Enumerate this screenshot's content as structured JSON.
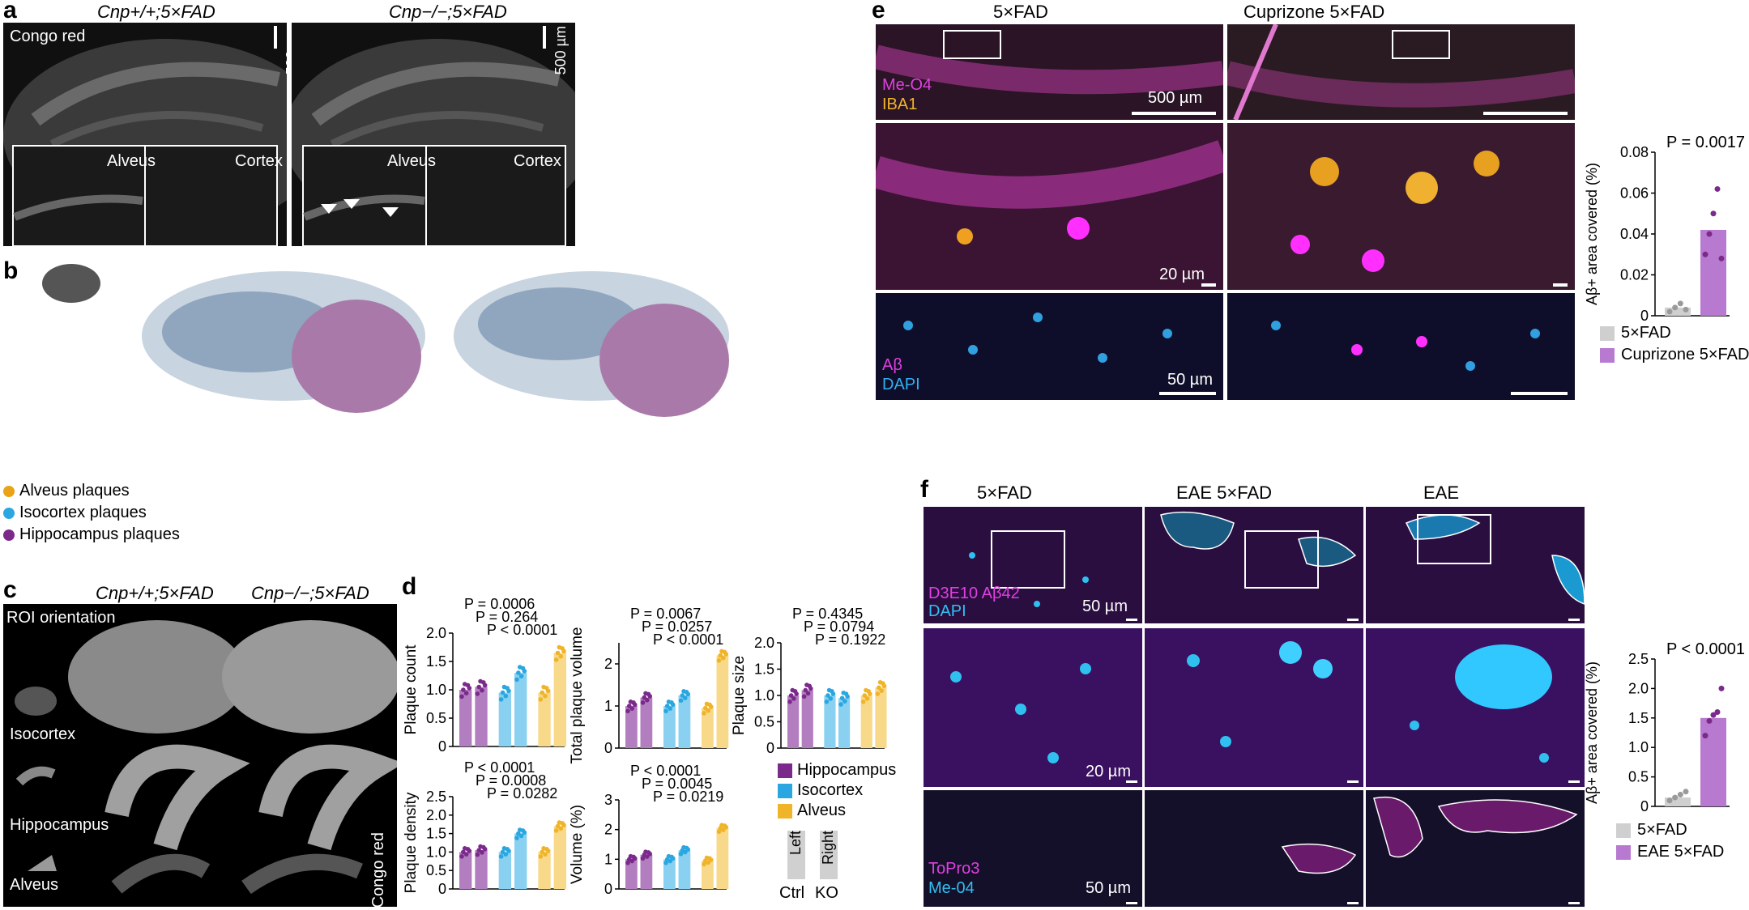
{
  "panels": {
    "a": {
      "label": "a",
      "col1": "Cnp+/+;5×FAD",
      "col2": "Cnp−/−;5×FAD",
      "stain": "Congo red",
      "scale": "500 µm",
      "inset_left": "Alveus",
      "inset_right": "Cortex"
    },
    "b": {
      "label": "b",
      "legend": [
        {
          "name": "Alveus plaques",
          "color": "#e8a317"
        },
        {
          "name": "Isocortex plaques",
          "color": "#2aa7e0"
        },
        {
          "name": "Hippocampus plaques",
          "color": "#7b2a8c"
        }
      ]
    },
    "c": {
      "label": "c",
      "col1": "Cnp+/+;5×FAD",
      "col2": "Cnp−/−;5×FAD",
      "roi": "ROI orientation",
      "rows": [
        "Isocortex",
        "Hippocampus",
        "Alveus"
      ],
      "stain": "Congo red"
    },
    "d": {
      "label": "d",
      "legend": [
        {
          "name": "Hippocampus",
          "color": "#7b2a8c"
        },
        {
          "name": "Isocortex",
          "color": "#2aa7e0"
        },
        {
          "name": "Alveus",
          "color": "#f0b429"
        }
      ],
      "side_left": "Left",
      "side_right": "Right",
      "ctrl": "Ctrl",
      "ko": "KO"
    },
    "e": {
      "label": "e",
      "col1": "5×FAD",
      "col2": "Cuprizone 5×FAD",
      "stain1a": "Me-O4",
      "stain1b": "IBA1",
      "scale1": "500 µm",
      "scale2": "20 µm",
      "stain3a": "Aβ",
      "stain3b": "DAPI",
      "scale3": "50 µm"
    },
    "f": {
      "label": "f",
      "col1": "5×FAD",
      "col2": "EAE 5×FAD",
      "col3": "EAE",
      "stain1a": "D3E10 Aβ42",
      "stain1b": "DAPI",
      "scale1": "50 µm",
      "scale2": "20 µm",
      "stain3a": "ToPro3",
      "stain3b": "Me-04",
      "scale3": "50 µm"
    }
  },
  "chart_data": [
    {
      "type": "bar",
      "id": "plaque-count",
      "ylabel": "Plaque count",
      "ylim": [
        0,
        2.0
      ],
      "yticks": [
        "0",
        "0.5",
        "1.0",
        "1.5",
        "2.0"
      ],
      "categories": [
        "Hippocampus Ctrl",
        "Hippocampus KO",
        "Isocortex Ctrl",
        "Isocortex KO",
        "Alveus Ctrl",
        "Alveus KO"
      ],
      "values": [
        1.0,
        1.05,
        0.95,
        1.3,
        0.95,
        1.65
      ],
      "annotations": [
        "P = 0.0006",
        "P = 0.264",
        "P < 0.0001"
      ]
    },
    {
      "type": "bar",
      "id": "total-plaque-volume",
      "ylabel": "Total plaque volume",
      "ylim": [
        0,
        2.5
      ],
      "yticks": [
        "0",
        "1",
        "2"
      ],
      "categories": [
        "Hippocampus Ctrl",
        "Hippocampus KO",
        "Isocortex Ctrl",
        "Isocortex KO",
        "Alveus Ctrl",
        "Alveus KO"
      ],
      "values": [
        1.0,
        1.2,
        1.0,
        1.25,
        0.95,
        2.2
      ],
      "annotations": [
        "P = 0.0067",
        "P = 0.0257",
        "P < 0.0001"
      ]
    },
    {
      "type": "bar",
      "id": "plaque-size",
      "ylabel": "Plaque size",
      "ylim": [
        0,
        2.0
      ],
      "yticks": [
        "0",
        "0.5",
        "1.0",
        "1.5",
        "2.0"
      ],
      "categories": [
        "Hippocampus Ctrl",
        "Hippocampus KO",
        "Isocortex Ctrl",
        "Isocortex KO",
        "Alveus Ctrl",
        "Alveus KO"
      ],
      "values": [
        1.0,
        1.1,
        1.0,
        0.95,
        1.0,
        1.15
      ],
      "annotations": [
        "P = 0.4345",
        "P = 0.0794",
        "P = 0.1922"
      ]
    },
    {
      "type": "bar",
      "id": "plaque-density",
      "ylabel": "Plaque density",
      "ylim": [
        0,
        2.5
      ],
      "yticks": [
        "0",
        "0.5",
        "1.0",
        "1.5",
        "2.0",
        "2.5"
      ],
      "categories": [
        "Hippocampus Ctrl",
        "Hippocampus KO",
        "Isocortex Ctrl",
        "Isocortex KO",
        "Alveus Ctrl",
        "Alveus KO"
      ],
      "values": [
        1.0,
        1.05,
        1.0,
        1.5,
        1.0,
        1.7
      ],
      "annotations": [
        "P < 0.0001",
        "P = 0.0008",
        "P = 0.0282"
      ]
    },
    {
      "type": "bar",
      "id": "volume-percent",
      "ylabel": "Volume (%)",
      "ylim": [
        0,
        3
      ],
      "yticks": [
        "0",
        "1",
        "2",
        "3"
      ],
      "categories": [
        "Hippocampus Ctrl",
        "Hippocampus KO",
        "Isocortex Ctrl",
        "Isocortex KO",
        "Alveus Ctrl",
        "Alveus KO"
      ],
      "values": [
        1.0,
        1.15,
        1.0,
        1.3,
        0.95,
        2.05
      ],
      "annotations": [
        "P < 0.0001",
        "P = 0.0045",
        "P = 0.0219"
      ]
    },
    {
      "type": "bar",
      "id": "e-area",
      "ylabel": "Aβ+ area covered (%)",
      "ylim": [
        0,
        0.08
      ],
      "yticks": [
        "0",
        "0.02",
        "0.04",
        "0.06",
        "0.08"
      ],
      "categories": [
        "5×FAD",
        "Cuprizone 5×FAD"
      ],
      "values": [
        0.004,
        0.042
      ],
      "colors": [
        "#cfcfcf",
        "#b77ad0"
      ],
      "points": [
        [
          0.002,
          0.004,
          0.006,
          0.003
        ],
        [
          0.03,
          0.04,
          0.05,
          0.062,
          0.028
        ]
      ],
      "annotations": [
        "P = 0.0017"
      ]
    },
    {
      "type": "bar",
      "id": "f-area",
      "ylabel": "Aβ+ area covered (%)",
      "ylim": [
        0,
        2.5
      ],
      "yticks": [
        "0",
        "0.5",
        "1.0",
        "1.5",
        "2.0",
        "2.5"
      ],
      "categories": [
        "5×FAD",
        "EAE 5×FAD"
      ],
      "values": [
        0.15,
        1.5
      ],
      "colors": [
        "#cfcfcf",
        "#b77ad0"
      ],
      "points": [
        [
          0.1,
          0.15,
          0.2,
          0.25
        ],
        [
          1.2,
          1.45,
          1.55,
          1.6,
          2.0
        ]
      ],
      "annotations": [
        "P < 0.0001"
      ]
    }
  ]
}
